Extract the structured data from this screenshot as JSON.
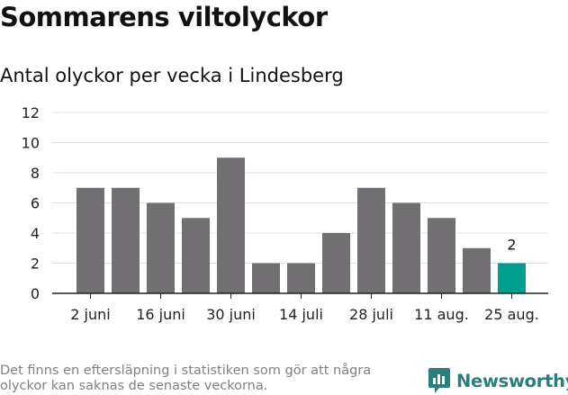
{
  "header": {
    "title": "Sommarens viltolyckor",
    "subtitle": "Antal olyckor per vecka i Lindesberg"
  },
  "chart_data": {
    "type": "bar",
    "title": "Sommarens viltolyckor",
    "subtitle": "Antal olyckor per vecka i Lindesberg",
    "xlabel": "",
    "ylabel": "",
    "ylim": [
      0,
      12
    ],
    "y_ticks": [
      "0",
      "2",
      "4",
      "6",
      "8",
      "10",
      "12"
    ],
    "x_tick_labels": [
      "2 juni",
      "16 juni",
      "30 juni",
      "14 juli",
      "28 juli",
      "11 aug.",
      "25 aug."
    ],
    "values": [
      7,
      7,
      6,
      5,
      9,
      2,
      2,
      4,
      7,
      6,
      5,
      3,
      2
    ],
    "highlight_index": 12,
    "highlight_label": "2",
    "grid": true,
    "colors": {
      "bar": "#716f72",
      "highlight": "#009e8e",
      "grid": "#e0e0e0",
      "axis": "#222222"
    }
  },
  "footer": {
    "note": "Det finns en eftersläpning i statistiken som gör att några olyckor kan saknas de senaste veckorna.",
    "brand_name": "Newsworthy",
    "brand_icon": "newsworthy-logo-icon",
    "brand_color": "#2a7f7a"
  }
}
